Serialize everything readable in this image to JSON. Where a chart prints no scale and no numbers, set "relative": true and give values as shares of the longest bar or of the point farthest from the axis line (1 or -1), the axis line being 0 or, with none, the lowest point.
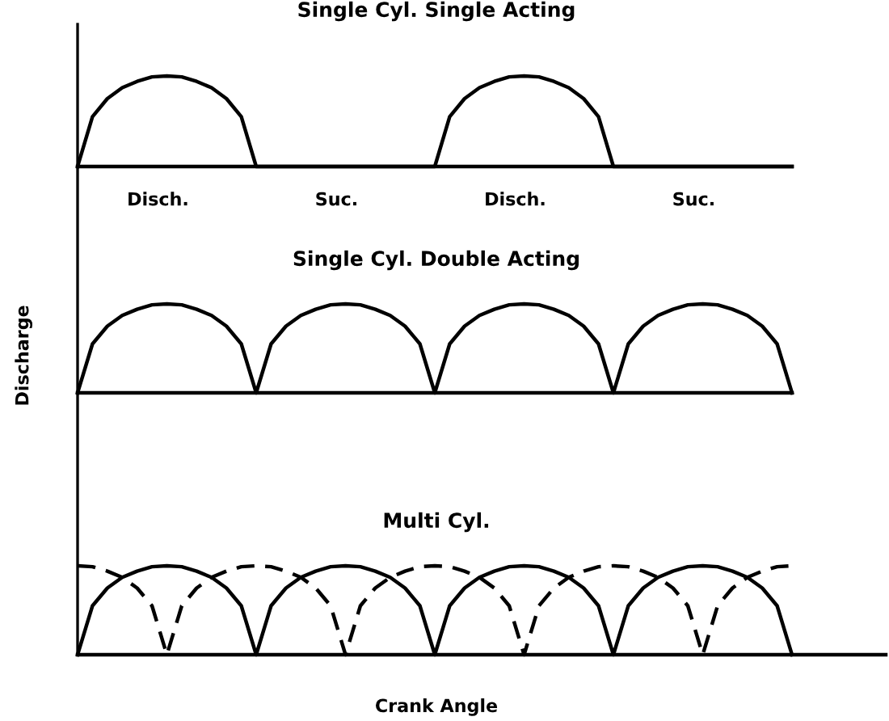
{
  "chart_data": [
    {
      "type": "line",
      "title": "Single Cyl. Single Acting",
      "relative": true,
      "categories": [
        null,
        null,
        null,
        null,
        null,
        null,
        null,
        null,
        null,
        null,
        null,
        null,
        null,
        null,
        null,
        null,
        null,
        null,
        null,
        null,
        null,
        null,
        null,
        null,
        null,
        null,
        null,
        null,
        null,
        null,
        null,
        null,
        null,
        null,
        null,
        null,
        null,
        null,
        null,
        null,
        null,
        null,
        null,
        null,
        null,
        null,
        null,
        null,
        null
      ],
      "series": [
        {
          "color": "#000000",
          "line_style": "solid",
          "values": [
            0,
            0.55,
            0.75,
            0.87,
            0.94,
            0.99,
            1,
            0.99,
            0.94,
            0.87,
            0.75,
            0.55,
            0,
            0,
            0,
            0,
            0,
            0,
            0,
            0,
            0,
            0,
            0,
            0,
            0,
            0.55,
            0.75,
            0.87,
            0.94,
            0.99,
            1,
            0.99,
            0.94,
            0.87,
            0.75,
            0.55,
            0,
            0,
            0,
            0,
            0,
            0,
            0,
            0,
            0,
            0,
            0,
            0,
            0
          ]
        }
      ],
      "annotations": [
        "Disch.",
        "Suc.",
        "Disch.",
        "Suc."
      ]
    },
    {
      "type": "line",
      "title": "Single Cyl. Double Acting",
      "ylabel": "Discharge",
      "relative": true,
      "categories": [
        null,
        null,
        null,
        null,
        null,
        null,
        null,
        null,
        null,
        null,
        null,
        null,
        null,
        null,
        null,
        null,
        null,
        null,
        null,
        null,
        null,
        null,
        null,
        null,
        null,
        null,
        null,
        null,
        null,
        null,
        null,
        null,
        null,
        null,
        null,
        null,
        null,
        null,
        null,
        null,
        null,
        null,
        null,
        null,
        null,
        null,
        null,
        null,
        null
      ],
      "series": [
        {
          "color": "#000000",
          "line_style": "solid",
          "values": [
            0,
            0.55,
            0.75,
            0.87,
            0.94,
            0.99,
            1,
            0.99,
            0.94,
            0.87,
            0.75,
            0.55,
            0,
            0.55,
            0.75,
            0.87,
            0.94,
            0.99,
            1,
            0.99,
            0.94,
            0.87,
            0.75,
            0.55,
            0,
            0.55,
            0.75,
            0.87,
            0.94,
            0.99,
            1,
            0.99,
            0.94,
            0.87,
            0.75,
            0.55,
            0,
            0.55,
            0.75,
            0.87,
            0.94,
            0.99,
            1,
            0.99,
            0.94,
            0.87,
            0.75,
            0.55,
            0
          ]
        }
      ]
    },
    {
      "type": "line",
      "title": "Multi Cyl.",
      "xlabel": "Crank Angle",
      "relative": true,
      "categories": [
        null,
        null,
        null,
        null,
        null,
        null,
        null,
        null,
        null,
        null,
        null,
        null,
        null,
        null,
        null,
        null,
        null,
        null,
        null,
        null,
        null,
        null,
        null,
        null,
        null,
        null,
        null,
        null,
        null,
        null,
        null,
        null,
        null,
        null,
        null,
        null,
        null,
        null,
        null,
        null,
        null,
        null,
        null,
        null,
        null,
        null,
        null,
        null,
        null
      ],
      "series": [
        {
          "color": "#000000",
          "line_style": "solid",
          "values": [
            0,
            0.55,
            0.75,
            0.87,
            0.94,
            0.99,
            1,
            0.99,
            0.94,
            0.87,
            0.75,
            0.55,
            0,
            0.55,
            0.75,
            0.87,
            0.94,
            0.99,
            1,
            0.99,
            0.94,
            0.87,
            0.75,
            0.55,
            0,
            0.55,
            0.75,
            0.87,
            0.94,
            0.99,
            1,
            0.99,
            0.94,
            0.87,
            0.75,
            0.55,
            0,
            0.55,
            0.75,
            0.87,
            0.94,
            0.99,
            1,
            0.99,
            0.94,
            0.87,
            0.75,
            0.55,
            0
          ]
        },
        {
          "color": "#000000",
          "line_style": "dashed",
          "values": [
            1,
            0.99,
            0.94,
            0.87,
            0.75,
            0.55,
            0,
            0.55,
            0.75,
            0.87,
            0.94,
            0.99,
            1,
            0.99,
            0.94,
            0.87,
            0.75,
            0.55,
            0,
            0.55,
            0.75,
            0.87,
            0.94,
            0.99,
            1,
            0.99,
            0.94,
            0.87,
            0.75,
            0.55,
            0,
            0.55,
            0.75,
            0.87,
            0.94,
            0.99,
            1,
            0.99,
            0.94,
            0.87,
            0.75,
            0.55,
            0,
            0.55,
            0.75,
            0.87,
            0.94,
            0.99,
            1
          ]
        }
      ]
    }
  ]
}
